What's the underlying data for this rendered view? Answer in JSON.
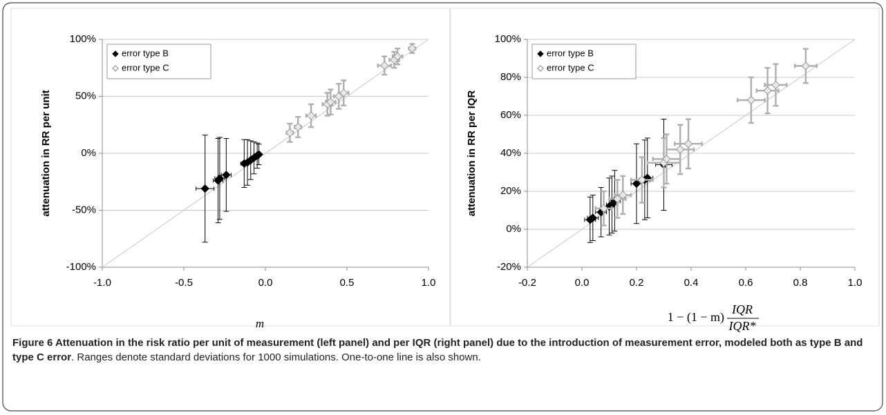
{
  "chart_data": [
    {
      "type": "scatter",
      "y_label": "attenuation in RR per unit",
      "x_label": "m",
      "xlim": [
        -1,
        1
      ],
      "ylim": [
        -100,
        100
      ],
      "xticks": [
        {
          "value": -1,
          "label": "-1.0"
        },
        {
          "value": -0.5,
          "label": "-0.5"
        },
        {
          "value": 0,
          "label": "0.0"
        },
        {
          "value": 0.5,
          "label": "0.5"
        },
        {
          "value": 1,
          "label": "1.0"
        }
      ],
      "yticks": [
        {
          "value": -100,
          "label": "-100%"
        },
        {
          "value": -50,
          "label": "-50%"
        },
        {
          "value": 0,
          "label": "0%"
        },
        {
          "value": 50,
          "label": "50%"
        },
        {
          "value": 100,
          "label": "100%"
        }
      ],
      "grid": true,
      "legend": "upper left",
      "series": [
        {
          "name": "error type B",
          "color": "#000000",
          "x": [
            -0.37,
            -0.29,
            -0.28,
            -0.24,
            -0.13,
            -0.11,
            -0.09,
            -0.07,
            -0.05,
            -0.04
          ],
          "values": [
            -31,
            -24,
            -22,
            -19,
            -9,
            -8,
            -6,
            -4,
            -2,
            -1
          ],
          "x_err": [
            0.055,
            0.03,
            0.03,
            0.03,
            0.02,
            0.02,
            0.02,
            0.015,
            0.015,
            0.01
          ],
          "y_err": [
            47,
            37,
            36,
            32,
            21,
            20,
            17,
            14,
            11,
            9
          ]
        },
        {
          "name": "error type C",
          "color": "#b0b0b0",
          "x": [
            0.15,
            0.2,
            0.28,
            0.38,
            0.4,
            0.45,
            0.48,
            0.73,
            0.79,
            0.81,
            0.9
          ],
          "values": [
            18,
            23,
            33,
            43,
            45,
            50,
            53,
            77,
            82,
            85,
            92
          ],
          "x_err": [
            0.02,
            0.02,
            0.03,
            0.03,
            0.03,
            0.03,
            0.03,
            0.04,
            0.03,
            0.03,
            0.02
          ],
          "y_err": [
            8,
            9,
            10,
            10,
            11,
            11,
            11,
            8,
            7,
            7,
            4
          ]
        }
      ]
    },
    {
      "type": "scatter",
      "y_label": "attenuation in RR per IQR",
      "x_label": {
        "lhs": "1 − (1 − m)",
        "numerator": "IQR",
        "denominator": "IQR*"
      },
      "xlim": [
        -0.2,
        1
      ],
      "ylim": [
        -20,
        100
      ],
      "xticks": [
        {
          "value": -0.2,
          "label": "-0.2"
        },
        {
          "value": 0,
          "label": "0.0"
        },
        {
          "value": 0.2,
          "label": "0.2"
        },
        {
          "value": 0.4,
          "label": "0.4"
        },
        {
          "value": 0.6,
          "label": "0.6"
        },
        {
          "value": 0.8,
          "label": "0.8"
        },
        {
          "value": 1,
          "label": "1.0"
        }
      ],
      "yticks": [
        {
          "value": -20,
          "label": "-20%"
        },
        {
          "value": 0,
          "label": "0%"
        },
        {
          "value": 20,
          "label": "20%"
        },
        {
          "value": 40,
          "label": "40%"
        },
        {
          "value": 60,
          "label": "60%"
        },
        {
          "value": 80,
          "label": "80%"
        },
        {
          "value": 100,
          "label": "100%"
        }
      ],
      "grid": true,
      "legend": "upper left",
      "series": [
        {
          "name": "error type B",
          "color": "#000000",
          "x": [
            0.03,
            0.04,
            0.07,
            0.1,
            0.11,
            0.12,
            0.2,
            0.23,
            0.24,
            0.3
          ],
          "values": [
            5,
            6,
            9,
            12,
            13,
            15,
            24,
            26,
            27,
            34
          ],
          "x_err": [
            0.02,
            0.02,
            0.02,
            0.02,
            0.02,
            0.02,
            0.02,
            0.02,
            0.02,
            0.03
          ],
          "y_err": [
            12,
            12,
            13,
            15,
            15,
            16,
            21,
            21,
            21,
            24
          ]
        },
        {
          "name": "error type C",
          "color": "#b0b0b0",
          "x": [
            0.08,
            0.13,
            0.15,
            0.22,
            0.3,
            0.31,
            0.36,
            0.39,
            0.62,
            0.68,
            0.71,
            0.82
          ],
          "values": [
            11,
            16,
            18,
            26,
            35,
            37,
            42,
            45,
            68,
            73,
            76,
            86
          ],
          "x_err": [
            0.03,
            0.03,
            0.03,
            0.04,
            0.06,
            0.05,
            0.05,
            0.05,
            0.05,
            0.04,
            0.04,
            0.04
          ],
          "y_err": [
            9,
            10,
            10,
            12,
            13,
            13,
            13,
            13,
            12,
            12,
            11,
            9
          ]
        }
      ]
    }
  ],
  "caption": {
    "title": "Figure 6 Attenuation in the risk ratio per unit of measurement (left panel) and per IQR (right panel) due to the introduction of measurement error, modeled both as type B and type C error",
    "text": ". Ranges denote standard deviations for 1000 simulations. One-to-one line is also shown."
  }
}
